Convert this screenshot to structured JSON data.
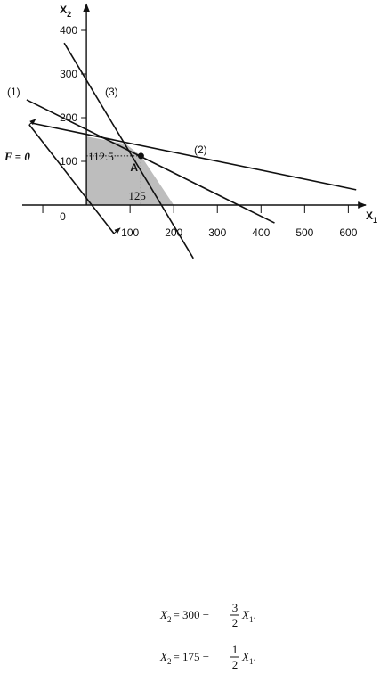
{
  "figure": {
    "x_axis_label": {
      "text": "X",
      "sub": "1"
    },
    "y_axis_label": {
      "text": "X",
      "sub": "2"
    },
    "origin_label": "0",
    "xlim": [
      -147,
      640
    ],
    "ylim": [
      -60,
      460
    ],
    "xticks": [
      100,
      200,
      300,
      400,
      500,
      600
    ],
    "unlabeled_xticks": [
      -100
    ],
    "yticks": [
      100,
      200,
      300,
      400
    ],
    "lines": [
      {
        "name": "(1)",
        "points": [
          [
            -137,
            241
          ],
          [
            431,
            -41
          ]
        ]
      },
      {
        "name": "(2)",
        "points": [
          [
            -127,
            188
          ],
          [
            618,
            35
          ]
        ]
      },
      {
        "name": "(3)",
        "points": [
          [
            -51,
            371
          ],
          [
            245,
            -122
          ]
        ]
      }
    ],
    "objective": {
      "name": "F = 0",
      "points": [
        [
          -131,
          184
        ],
        [
          63,
          -65
        ]
      ]
    },
    "feasible_region": [
      [
        0,
        0
      ],
      [
        0,
        157
      ],
      [
        90,
        140
      ],
      [
        125,
        112.5
      ],
      [
        200,
        0
      ]
    ],
    "point": {
      "name": "A",
      "x": 125,
      "y": 112.5,
      "x_label": "125",
      "y_label": "112.5"
    }
  },
  "equations": [
    {
      "lhs": "X",
      "lhs_sub": "2",
      "rhs": "= 300 −",
      "num": "3",
      "den": "2",
      "var": "X",
      "var_sub": "1",
      "end": "."
    },
    {
      "lhs": "X",
      "lhs_sub": "2",
      "rhs": "= 175 −",
      "num": "1",
      "den": "2",
      "var": "X",
      "var_sub": "1",
      "end": "."
    }
  ]
}
